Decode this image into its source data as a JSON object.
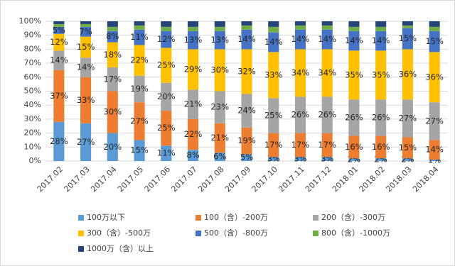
{
  "chart_data": {
    "type": "stacked_bar_100",
    "categories": [
      "2017.02",
      "2017.03",
      "2017.04",
      "2017.05",
      "2017.06",
      "2017.07",
      "2017.08",
      "2017.09",
      "2017.10",
      "2017.11",
      "2017.12",
      "2018.01",
      "2018.02",
      "2018.03",
      "2018.04"
    ],
    "series": [
      {
        "name": "100万以下",
        "color": "#5b9bd5",
        "values": [
          28,
          27,
          20,
          15,
          11,
          8,
          6,
          5,
          3,
          3,
          3,
          2,
          2,
          2,
          1
        ],
        "value_labels": [
          "28%",
          "27%",
          "20%",
          "15%",
          "11%",
          "8%",
          "6%",
          "5%",
          "3%",
          "3%",
          "3%",
          "2%",
          "2%",
          "2%",
          "1%"
        ]
      },
      {
        "name": "100（含）-200万",
        "color": "#ed7d31",
        "values": [
          37,
          33,
          30,
          27,
          25,
          22,
          21,
          19,
          17,
          17,
          17,
          16,
          16,
          15,
          14
        ],
        "value_labels": [
          "37%",
          "33%",
          "30%",
          "27%",
          "25%",
          "22%",
          "21%",
          "19%",
          "17%",
          "17%",
          "17%",
          "16%",
          "16%",
          "15%",
          "14%"
        ]
      },
      {
        "name": "200（含）-300万",
        "color": "#a5a5a5",
        "values": [
          14,
          14,
          17,
          19,
          20,
          21,
          23,
          24,
          25,
          26,
          26,
          26,
          26,
          27,
          27
        ],
        "value_labels": [
          "14%",
          "14%",
          "17%",
          "19%",
          "20%",
          "21%",
          "23%",
          "24%",
          "25%",
          "26%",
          "26%",
          "26%",
          "26%",
          "27%",
          "27%"
        ]
      },
      {
        "name": "300（含）-500万",
        "color": "#ffc000",
        "values": [
          12,
          15,
          18,
          22,
          25,
          29,
          30,
          32,
          33,
          34,
          34,
          35,
          35,
          36,
          36
        ],
        "value_labels": [
          "12%",
          "15%",
          "18%",
          "22%",
          "25%",
          "29%",
          "30%",
          "32%",
          "33%",
          "34%",
          "34%",
          "35%",
          "35%",
          "36%",
          "36%"
        ]
      },
      {
        "name": "500（含）-800万",
        "color": "#4472c4",
        "values": [
          5,
          7,
          8,
          11,
          12,
          13,
          13,
          14,
          14,
          14,
          14,
          14,
          14,
          15,
          15
        ],
        "value_labels": [
          "5%",
          "7%",
          "8%",
          "11%",
          "12%",
          "13%",
          "13%",
          "14%",
          "14%",
          "14%",
          "14%",
          "14%",
          "14%",
          "15%",
          "15%"
        ]
      },
      {
        "name": "800（含）-1000万",
        "color": "#70ad47",
        "values": [
          2,
          2,
          3,
          3,
          3,
          3,
          3,
          3,
          4,
          3,
          3,
          3,
          3,
          2,
          3
        ]
      },
      {
        "name": "1000万（含）以上",
        "color": "#264478",
        "values": [
          2,
          2,
          4,
          3,
          4,
          4,
          4,
          3,
          4,
          3,
          3,
          4,
          4,
          3,
          4
        ]
      }
    ],
    "ylim": [
      0,
      100
    ],
    "yticks": [
      {
        "value": 0,
        "label": "0%"
      },
      {
        "value": 10,
        "label": "10%"
      },
      {
        "value": 20,
        "label": "20%"
      },
      {
        "value": 30,
        "label": "30%"
      },
      {
        "value": 40,
        "label": "40%"
      },
      {
        "value": 50,
        "label": "50%"
      },
      {
        "value": 60,
        "label": "60%"
      },
      {
        "value": 70,
        "label": "70%"
      },
      {
        "value": 80,
        "label": "80%"
      },
      {
        "value": 90,
        "label": "90%"
      },
      {
        "value": 100,
        "label": "100%"
      }
    ],
    "grid": true,
    "legend": "bottom"
  }
}
